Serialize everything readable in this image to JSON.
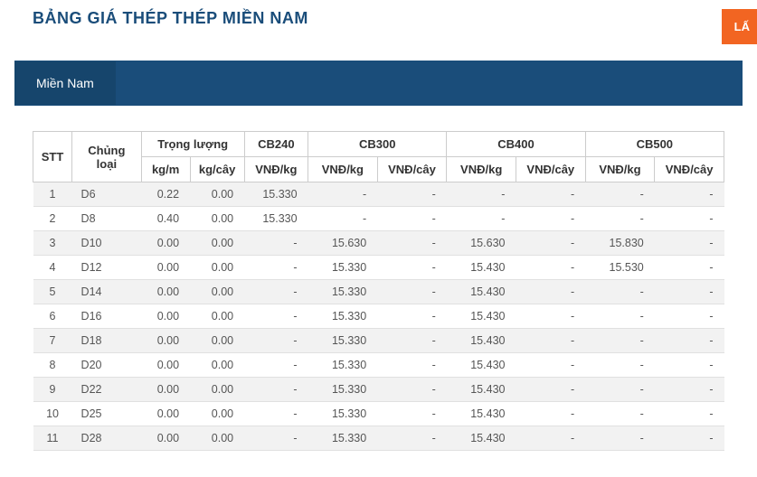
{
  "title": "BẢNG GIÁ THÉP THÉP MIỀN NAM",
  "orange_label": "LẤ",
  "tab_label": "Miền Nam",
  "headers": {
    "stt": "STT",
    "type": "Chủng loại",
    "weight": "Trọng lượng",
    "kgm": "kg/m",
    "kgcay": "kg/cây",
    "cb240": "CB240",
    "cb300": "CB300",
    "cb400": "CB400",
    "cb500": "CB500",
    "vndkg": "VNĐ/kg",
    "vndcay": "VNĐ/cây"
  },
  "rows": [
    {
      "stt": "1",
      "type": "D6",
      "kgm": "0.22",
      "kgcay": "0.00",
      "cb240": "15.330",
      "cb300kg": "-",
      "cb300cay": "-",
      "cb400kg": "-",
      "cb400cay": "-",
      "cb500kg": "-",
      "cb500cay": "-"
    },
    {
      "stt": "2",
      "type": "D8",
      "kgm": "0.40",
      "kgcay": "0.00",
      "cb240": "15.330",
      "cb300kg": "-",
      "cb300cay": "-",
      "cb400kg": "-",
      "cb400cay": "-",
      "cb500kg": "-",
      "cb500cay": "-"
    },
    {
      "stt": "3",
      "type": "D10",
      "kgm": "0.00",
      "kgcay": "0.00",
      "cb240": "-",
      "cb300kg": "15.630",
      "cb300cay": "-",
      "cb400kg": "15.630",
      "cb400cay": "-",
      "cb500kg": "15.830",
      "cb500cay": "-"
    },
    {
      "stt": "4",
      "type": "D12",
      "kgm": "0.00",
      "kgcay": "0.00",
      "cb240": "-",
      "cb300kg": "15.330",
      "cb300cay": "-",
      "cb400kg": "15.430",
      "cb400cay": "-",
      "cb500kg": "15.530",
      "cb500cay": "-"
    },
    {
      "stt": "5",
      "type": "D14",
      "kgm": "0.00",
      "kgcay": "0.00",
      "cb240": "-",
      "cb300kg": "15.330",
      "cb300cay": "-",
      "cb400kg": "15.430",
      "cb400cay": "-",
      "cb500kg": "-",
      "cb500cay": "-"
    },
    {
      "stt": "6",
      "type": "D16",
      "kgm": "0.00",
      "kgcay": "0.00",
      "cb240": "-",
      "cb300kg": "15.330",
      "cb300cay": "-",
      "cb400kg": "15.430",
      "cb400cay": "-",
      "cb500kg": "-",
      "cb500cay": "-"
    },
    {
      "stt": "7",
      "type": "D18",
      "kgm": "0.00",
      "kgcay": "0.00",
      "cb240": "-",
      "cb300kg": "15.330",
      "cb300cay": "-",
      "cb400kg": "15.430",
      "cb400cay": "-",
      "cb500kg": "-",
      "cb500cay": "-"
    },
    {
      "stt": "8",
      "type": "D20",
      "kgm": "0.00",
      "kgcay": "0.00",
      "cb240": "-",
      "cb300kg": "15.330",
      "cb300cay": "-",
      "cb400kg": "15.430",
      "cb400cay": "-",
      "cb500kg": "-",
      "cb500cay": "-"
    },
    {
      "stt": "9",
      "type": "D22",
      "kgm": "0.00",
      "kgcay": "0.00",
      "cb240": "-",
      "cb300kg": "15.330",
      "cb300cay": "-",
      "cb400kg": "15.430",
      "cb400cay": "-",
      "cb500kg": "-",
      "cb500cay": "-"
    },
    {
      "stt": "10",
      "type": "D25",
      "kgm": "0.00",
      "kgcay": "0.00",
      "cb240": "-",
      "cb300kg": "15.330",
      "cb300cay": "-",
      "cb400kg": "15.430",
      "cb400cay": "-",
      "cb500kg": "-",
      "cb500cay": "-"
    },
    {
      "stt": "11",
      "type": "D28",
      "kgm": "0.00",
      "kgcay": "0.00",
      "cb240": "-",
      "cb300kg": "15.330",
      "cb300cay": "-",
      "cb400kg": "15.430",
      "cb400cay": "-",
      "cb500kg": "-",
      "cb500cay": "-"
    }
  ],
  "colors": {
    "title": "#1a4d7a",
    "orange": "#f26522",
    "tabbar": "#1a4d7a",
    "tab_active": "#16456c",
    "border": "#cccccc",
    "row_odd": "#f2f2f2",
    "row_even": "#ffffff",
    "text": "#555555"
  }
}
